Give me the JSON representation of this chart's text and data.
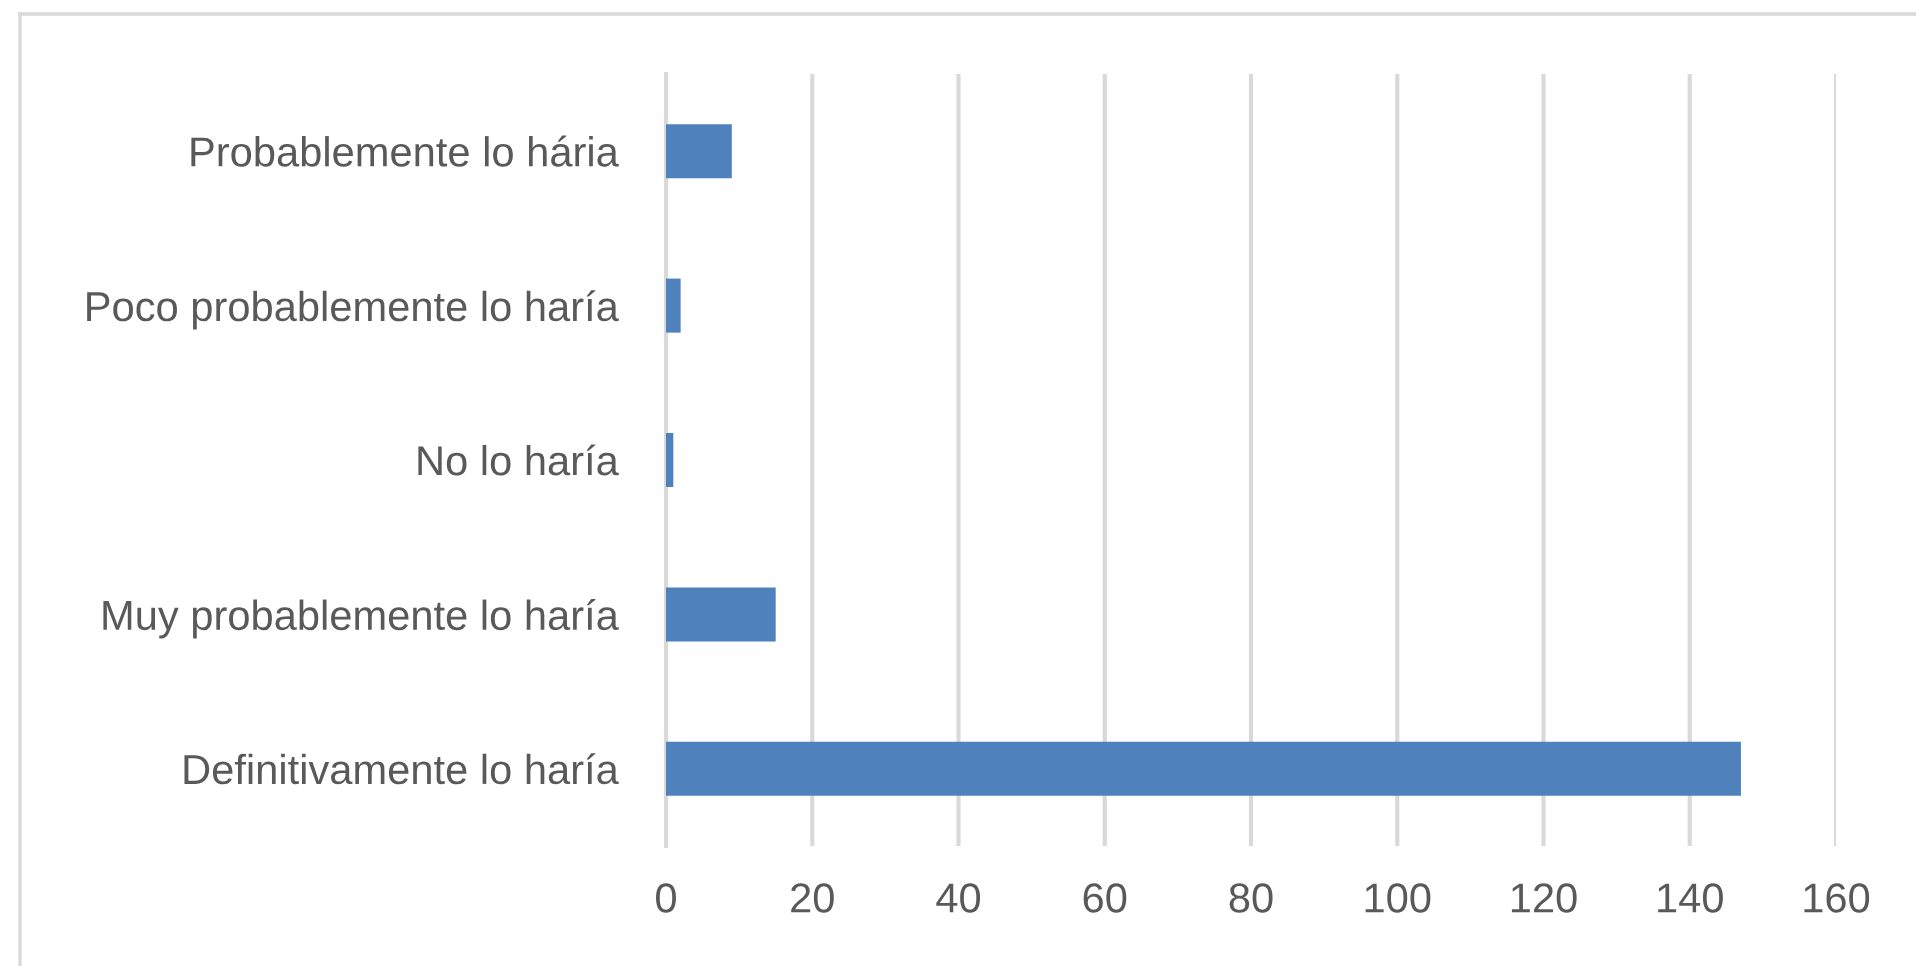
{
  "chart_data": {
    "type": "bar",
    "orientation": "horizontal",
    "categories": [
      "Probablemente lo hária",
      "Poco probablemente lo haría",
      "No lo haría",
      "Muy probablemente lo haría",
      "Definitivamente lo haría"
    ],
    "values": [
      9,
      2,
      1,
      15,
      147
    ],
    "color": "#4f81bd",
    "xlim": [
      0,
      160
    ],
    "xticks": [
      0,
      20,
      40,
      60,
      80,
      100,
      120,
      140,
      160
    ],
    "grid": "x",
    "legend": false
  }
}
